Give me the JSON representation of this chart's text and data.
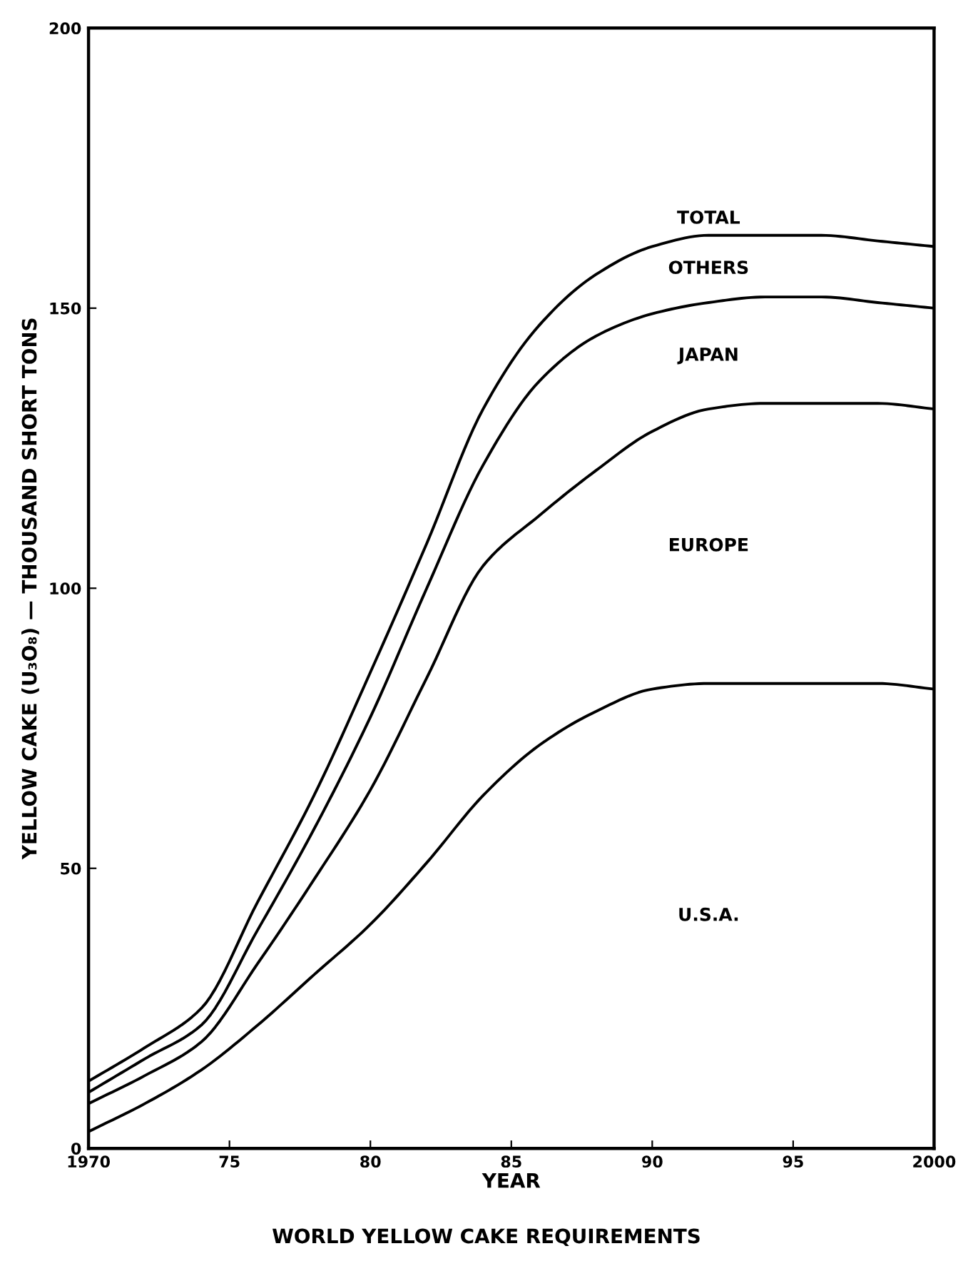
{
  "chart_data": {
    "type": "area",
    "stacked": true,
    "title": "WORLD YELLOW CAKE REQUIREMENTS",
    "xlabel": "YEAR",
    "ylabel": "YELLOW CAKE (U₃O₈) — THOUSAND SHORT TONS",
    "x": [
      1970,
      1972,
      1974,
      1976,
      1978,
      1980,
      1982,
      1984,
      1986,
      1988,
      1990,
      1992,
      1994,
      1996,
      1998,
      2000
    ],
    "series": [
      {
        "name": "U.S.A.",
        "color": "#ffffff",
        "values": [
          3,
          8,
          14,
          22,
          31,
          40,
          51,
          63,
          72,
          78,
          82,
          83,
          83,
          83,
          83,
          82
        ]
      },
      {
        "name": "EUROPE",
        "color": "#ffffff",
        "values": [
          5,
          5,
          5,
          11,
          17,
          24,
          33,
          41,
          41,
          43,
          46,
          49,
          50,
          50,
          50,
          50
        ]
      },
      {
        "name": "JAPAN",
        "color": "#ffffff",
        "values": [
          2,
          3,
          3,
          6,
          9,
          13,
          16,
          18,
          24,
          24,
          21,
          19,
          19,
          19,
          18,
          18
        ]
      },
      {
        "name": "OTHERS",
        "color": "#ffffff",
        "values": [
          2,
          2,
          3,
          5,
          6,
          8,
          8,
          10,
          10,
          11,
          12,
          12,
          11,
          11,
          11,
          11
        ]
      }
    ],
    "annotations": [
      {
        "text": "TOTAL",
        "x": 1992,
        "y": 163
      }
    ],
    "xlim": [
      1970,
      2000
    ],
    "ylim": [
      0,
      200
    ],
    "xticks": [
      1970,
      {
        "value": 1975,
        "label": "75"
      },
      {
        "value": 1980,
        "label": "80"
      },
      {
        "value": 1985,
        "label": "85"
      },
      {
        "value": 1990,
        "label": "90"
      },
      {
        "value": 1995,
        "label": "95"
      },
      2000
    ],
    "yticks": [
      0,
      50,
      100,
      150,
      200
    ],
    "grid": false,
    "legend": false
  }
}
